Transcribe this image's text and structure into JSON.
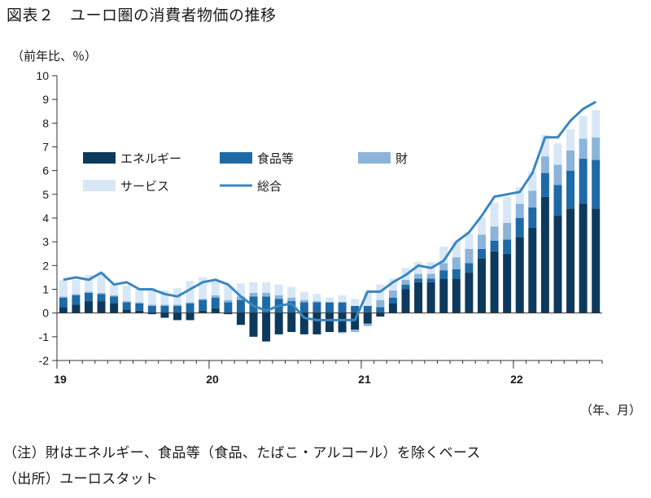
{
  "figure": {
    "title": "図表２　ユーロ圏の消費者物価の推移",
    "y_unit": "（前年比、％）",
    "x_unit": "（年、月）",
    "note": "（注）財はエネルギー、食品等（食品、たばこ・アルコール）を除くベース",
    "source": "（出所）ユーロスタット"
  },
  "chart_data": {
    "type": "bar",
    "stacked": true,
    "x": [
      "2019-01",
      "2019-02",
      "2019-03",
      "2019-04",
      "2019-05",
      "2019-06",
      "2019-07",
      "2019-08",
      "2019-09",
      "2019-10",
      "2019-11",
      "2019-12",
      "2020-01",
      "2020-02",
      "2020-03",
      "2020-04",
      "2020-05",
      "2020-06",
      "2020-07",
      "2020-08",
      "2020-09",
      "2020-10",
      "2020-11",
      "2020-12",
      "2021-01",
      "2021-02",
      "2021-03",
      "2021-04",
      "2021-05",
      "2021-06",
      "2021-07",
      "2021-08",
      "2021-09",
      "2021-10",
      "2021-11",
      "2021-12",
      "2022-01",
      "2022-02",
      "2022-03",
      "2022-04",
      "2022-05",
      "2022-06",
      "2022-07"
    ],
    "x_tick_labels": [
      {
        "label": "19",
        "at": "2019-01"
      },
      {
        "label": "20",
        "at": "2020-01"
      },
      {
        "label": "21",
        "at": "2021-01"
      },
      {
        "label": "22",
        "at": "2022-01"
      }
    ],
    "ylim": [
      -2,
      10
    ],
    "yticks": [
      -2,
      -1,
      0,
      1,
      2,
      3,
      4,
      5,
      6,
      7,
      8,
      9,
      10
    ],
    "legend_position": "top-left inside",
    "series": [
      {
        "name": "エネルギー",
        "color": "#0d3a5c",
        "values": [
          0.25,
          0.35,
          0.5,
          0.5,
          0.4,
          0.15,
          0.1,
          -0.05,
          -0.2,
          -0.3,
          -0.3,
          0.1,
          0.2,
          -0.05,
          -0.5,
          -1.0,
          -1.2,
          -0.9,
          -0.8,
          -0.9,
          -0.9,
          -0.8,
          -0.8,
          -0.7,
          -0.45,
          -0.15,
          0.4,
          1.0,
          1.3,
          1.3,
          1.45,
          1.45,
          1.7,
          2.3,
          2.6,
          2.5,
          3.2,
          3.6,
          4.9,
          4.1,
          4.4,
          4.6,
          4.4
        ]
      },
      {
        "name": "食品等",
        "color": "#1e6aa6",
        "values": [
          0.4,
          0.4,
          0.35,
          0.3,
          0.3,
          0.3,
          0.3,
          0.3,
          0.3,
          0.3,
          0.4,
          0.45,
          0.45,
          0.45,
          0.55,
          0.7,
          0.7,
          0.6,
          0.5,
          0.45,
          0.45,
          0.45,
          0.45,
          0.3,
          0.3,
          0.25,
          0.25,
          0.2,
          0.15,
          0.15,
          0.35,
          0.4,
          0.4,
          0.4,
          0.45,
          0.6,
          0.8,
          0.85,
          1.0,
          1.3,
          1.6,
          1.9,
          2.05
        ]
      },
      {
        "name": "財",
        "color": "#8cb4da",
        "values": [
          0.05,
          0.05,
          0.05,
          0.05,
          0.05,
          0.05,
          0.05,
          0.05,
          0.05,
          0.05,
          0.05,
          0.05,
          0.1,
          0.1,
          0.15,
          0.15,
          0.15,
          0.15,
          0.15,
          0.1,
          0.05,
          0.0,
          -0.05,
          -0.1,
          -0.1,
          0.3,
          0.3,
          0.2,
          0.2,
          0.2,
          0.3,
          0.5,
          0.6,
          0.6,
          0.6,
          0.7,
          0.6,
          0.7,
          0.7,
          0.85,
          0.85,
          0.85,
          0.95
        ]
      },
      {
        "name": "サービス",
        "color": "#d8e7f6",
        "values": [
          0.7,
          0.6,
          0.7,
          0.85,
          0.45,
          0.65,
          0.55,
          0.7,
          0.6,
          0.7,
          0.9,
          0.9,
          0.6,
          0.6,
          0.55,
          0.45,
          0.45,
          0.45,
          0.45,
          0.35,
          0.3,
          0.2,
          0.3,
          0.3,
          0.6,
          0.65,
          0.5,
          0.5,
          0.5,
          0.5,
          0.7,
          0.65,
          0.65,
          0.7,
          1.0,
          1.1,
          0.7,
          0.8,
          0.9,
          0.9,
          0.9,
          0.95,
          1.15
        ]
      },
      {
        "name": "総合",
        "color": "#3a86c0",
        "type": "line",
        "values": [
          1.4,
          1.5,
          1.4,
          1.7,
          1.2,
          1.3,
          1.0,
          1.0,
          0.8,
          0.7,
          1.0,
          1.3,
          1.4,
          1.2,
          0.7,
          0.3,
          0.1,
          0.3,
          0.4,
          -0.2,
          -0.3,
          -0.3,
          -0.3,
          -0.3,
          0.9,
          0.9,
          1.3,
          1.6,
          2.0,
          1.9,
          2.2,
          3.0,
          3.4,
          4.1,
          4.9,
          5.0,
          5.1,
          5.9,
          7.4,
          7.4,
          8.1,
          8.6,
          8.9
        ]
      }
    ]
  }
}
